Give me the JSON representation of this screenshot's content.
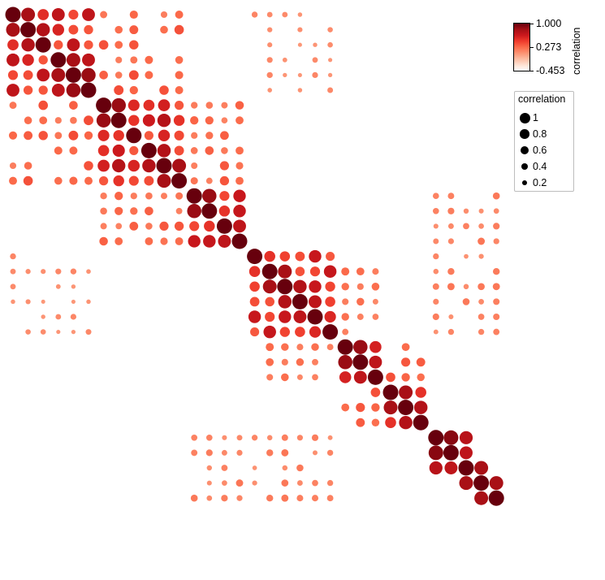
{
  "chart_data": {
    "type": "heatmap",
    "subtype": "correlation-dot-matrix",
    "n_variables": 33,
    "row_labels": [],
    "col_labels": [],
    "blocks": [
      {
        "start": 0,
        "end": 5,
        "within": 0.62
      },
      {
        "start": 6,
        "end": 11,
        "within": 0.6
      },
      {
        "start": 12,
        "end": 15,
        "within": 0.55
      },
      {
        "start": 16,
        "end": 21,
        "within": 0.6
      },
      {
        "start": 22,
        "end": 24,
        "within": 0.65
      },
      {
        "start": 25,
        "end": 27,
        "within": 0.5
      },
      {
        "start": 28,
        "end": 30,
        "within": 0.7
      },
      {
        "start": 31,
        "end": 32,
        "within": 0.5
      }
    ],
    "strong_pairs": [
      [
        0,
        1,
        0.8
      ],
      [
        1,
        2,
        0.75
      ],
      [
        3,
        4,
        0.8
      ],
      [
        4,
        5,
        0.85
      ],
      [
        6,
        7,
        0.85
      ],
      [
        9,
        10,
        0.75
      ],
      [
        10,
        11,
        0.8
      ],
      [
        12,
        13,
        0.85
      ],
      [
        14,
        15,
        0.7
      ],
      [
        17,
        18,
        0.8
      ],
      [
        18,
        19,
        0.75
      ],
      [
        19,
        20,
        0.7
      ],
      [
        22,
        23,
        0.85
      ],
      [
        23,
        24,
        0.7
      ],
      [
        25,
        26,
        0.8
      ],
      [
        26,
        27,
        0.75
      ],
      [
        28,
        29,
        0.9
      ],
      [
        29,
        30,
        0.7
      ],
      [
        30,
        31,
        0.8
      ],
      [
        31,
        32,
        0.8
      ]
    ],
    "cross_blocks": [
      {
        "rows": [
          0,
          5
        ],
        "cols": [
          6,
          11
        ],
        "value": 0.4
      },
      {
        "rows": [
          0,
          5
        ],
        "cols": [
          16,
          21
        ],
        "value": 0.15
      },
      {
        "rows": [
          6,
          11
        ],
        "cols": [
          12,
          15
        ],
        "value": 0.35
      },
      {
        "rows": [
          12,
          15
        ],
        "cols": [
          28,
          32
        ],
        "value": 0.25
      },
      {
        "rows": [
          16,
          21
        ],
        "cols": [
          22,
          24
        ],
        "value": 0.25
      },
      {
        "rows": [
          16,
          21
        ],
        "cols": [
          28,
          32
        ],
        "value": 0.25
      },
      {
        "rows": [
          22,
          24
        ],
        "cols": [
          25,
          27
        ],
        "value": 0.35
      },
      {
        "rows": [
          28,
          32
        ],
        "cols": [
          16,
          21
        ],
        "value": 0.2
      },
      {
        "rows": [
          28,
          32
        ],
        "cols": [
          12,
          15
        ],
        "value": 0.2
      }
    ],
    "color_scale": {
      "min": -0.453,
      "max": 1.0,
      "stops": [
        "#ffffff",
        "#fee0d2",
        "#fcbba1",
        "#fc9272",
        "#fb6a4a",
        "#ef3b2c",
        "#cb181d",
        "#a50f15",
        "#67000d"
      ]
    },
    "colorbar": {
      "title": "correlation",
      "ticks": [
        "1.000",
        "0.273",
        "-0.453"
      ]
    },
    "size_legend": {
      "title": "correlation",
      "entries": [
        {
          "label": "1",
          "value": 1.0
        },
        {
          "label": "0.8",
          "value": 0.8
        },
        {
          "label": "0.6",
          "value": 0.6
        },
        {
          "label": "0.4",
          "value": 0.4
        },
        {
          "label": "0.2",
          "value": 0.2
        }
      ]
    },
    "grid": false
  }
}
